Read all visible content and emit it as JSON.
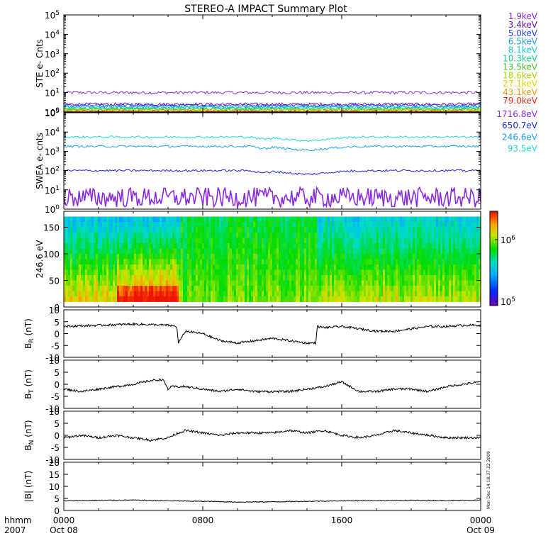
{
  "title": "STEREO-A IMPACT Summary Plot",
  "footer": {
    "time_label": "hhmm",
    "year": "2007",
    "date_start": "Oct 08",
    "date_end": "Oct 09"
  },
  "side_stamp": "Mon Dec 14 18:37:22 2009",
  "chart_data": [
    {
      "id": "ste",
      "type": "line",
      "ylabel": "STE e- Cnts",
      "yscale": "log",
      "ylim": [
        1,
        100000
      ],
      "yticks": [
        "10^0",
        "10^1",
        "10^2",
        "10^3",
        "10^4",
        "10^5"
      ],
      "series": [
        {
          "name": "1.9keV",
          "color": "#8a2be2",
          "level": 10
        },
        {
          "name": "3.4keV",
          "color": "#6a0dad",
          "level": 2.5
        },
        {
          "name": "5.0keV",
          "color": "#1e40ff",
          "level": 2.2
        },
        {
          "name": "6.5keV",
          "color": "#1aa0e6",
          "level": 1.9
        },
        {
          "name": "8.1keV",
          "color": "#16c8d8",
          "level": 1.7
        },
        {
          "name": "10.3keV",
          "color": "#1ad080",
          "level": 1.5
        },
        {
          "name": "13.5keV",
          "color": "#3cc820",
          "level": 1.35
        },
        {
          "name": "18.6keV",
          "color": "#a8d400",
          "level": 1.2
        },
        {
          "name": "27.1keV",
          "color": "#e6d000",
          "level": 1.1
        },
        {
          "name": "43.1keV",
          "color": "#e89a00",
          "level": 1.05
        },
        {
          "name": "79.0keV",
          "color": "#e62a10",
          "level": 1.0
        }
      ]
    },
    {
      "id": "swea",
      "type": "line",
      "ylabel": "SWEA e- cnts",
      "yscale": "log",
      "ylim": [
        1,
        100000
      ],
      "yticks": [
        "10^0",
        "10^1",
        "10^2",
        "10^3",
        "10^4",
        "10^5"
      ],
      "series": [
        {
          "name": "1716.8eV",
          "color": "#8a2be2",
          "level": 4
        },
        {
          "name": "650.7eV",
          "color": "#1e28d8",
          "level": 100
        },
        {
          "name": "246.6eV",
          "color": "#1aa0e6",
          "level": 1800
        },
        {
          "name": "93.5eV",
          "color": "#20d8d0",
          "level": 5500
        }
      ]
    },
    {
      "id": "pad",
      "type": "heatmap",
      "ylabel": "246.6 eV",
      "ylim": [
        0,
        180
      ],
      "yticks": [
        "0",
        "50",
        "100",
        "150"
      ],
      "colorbar": {
        "ticks": [
          "10^6",
          "10^5"
        ],
        "scale": "log",
        "range": [
          100000,
          2000000
        ]
      }
    },
    {
      "id": "br",
      "type": "line",
      "ylabel": "B_R (nT)",
      "ylim": [
        -10,
        10
      ],
      "yticks": [
        "10",
        "5",
        "0",
        "-5",
        "-10"
      ],
      "x_hours": [
        0,
        2,
        4,
        6,
        6.5,
        6.6,
        7,
        8,
        9,
        10,
        11,
        12,
        13,
        14,
        14.5,
        14.6,
        15,
        16,
        17,
        18,
        19,
        20,
        21,
        22,
        23,
        24
      ],
      "values": [
        3,
        3.5,
        4,
        3.5,
        3,
        -4,
        1,
        0,
        -3,
        -4,
        -3,
        -2,
        -3,
        -4,
        -4,
        3,
        2.5,
        3,
        2,
        1,
        1,
        2,
        3,
        3,
        3.5,
        3.5
      ]
    },
    {
      "id": "bt",
      "type": "line",
      "ylabel": "B_T (nT)",
      "ylim": [
        -10,
        10
      ],
      "yticks": [
        "10",
        "5",
        "0",
        "-5",
        "-10"
      ],
      "x_hours": [
        0,
        1,
        2,
        3,
        4,
        5,
        5.7,
        6,
        6.2,
        7,
        8,
        9,
        10,
        11,
        12,
        13,
        14,
        15,
        16,
        17,
        18,
        19,
        20,
        21,
        22,
        23,
        24
      ],
      "values": [
        -2,
        -3,
        -2,
        -1,
        0,
        1.5,
        2,
        -2,
        -1,
        -1,
        -2,
        -3,
        -2,
        -3,
        -3,
        -3,
        -2,
        -1,
        1,
        -3,
        -3,
        -2,
        -2,
        -3,
        -1,
        0,
        1
      ]
    },
    {
      "id": "bn",
      "type": "line",
      "ylabel": "B_N (nT)",
      "ylim": [
        -10,
        10
      ],
      "yticks": [
        "10",
        "5",
        "0",
        "-5",
        "-10"
      ],
      "x_hours": [
        0,
        1,
        2,
        3,
        4,
        5,
        6,
        6.6,
        7,
        8,
        9,
        10,
        11,
        12,
        13,
        14,
        15,
        16,
        17,
        18,
        19,
        20,
        21,
        22,
        23,
        24
      ],
      "values": [
        -1,
        0,
        -1,
        0,
        -1,
        -2,
        -1,
        1,
        2,
        1,
        0,
        1,
        1,
        1,
        2,
        1,
        2,
        0,
        -1,
        0,
        2,
        1,
        0,
        -1,
        -1,
        -1
      ]
    },
    {
      "id": "bmag",
      "type": "line",
      "ylabel": "|B| (nT)",
      "ylim": [
        0,
        20
      ],
      "yticks": [
        "20",
        "15",
        "10",
        "5",
        "0"
      ],
      "x_hours": [
        0,
        2,
        4,
        6,
        8,
        10,
        12,
        14,
        16,
        18,
        20,
        22,
        24
      ],
      "values": [
        4,
        4.2,
        4.3,
        4,
        3.8,
        3.5,
        3.6,
        3.8,
        4,
        4.1,
        4.2,
        4.1,
        4.3
      ]
    }
  ],
  "x_axis": {
    "ticks": [
      "0000",
      "0800",
      "1600",
      "0000"
    ]
  }
}
